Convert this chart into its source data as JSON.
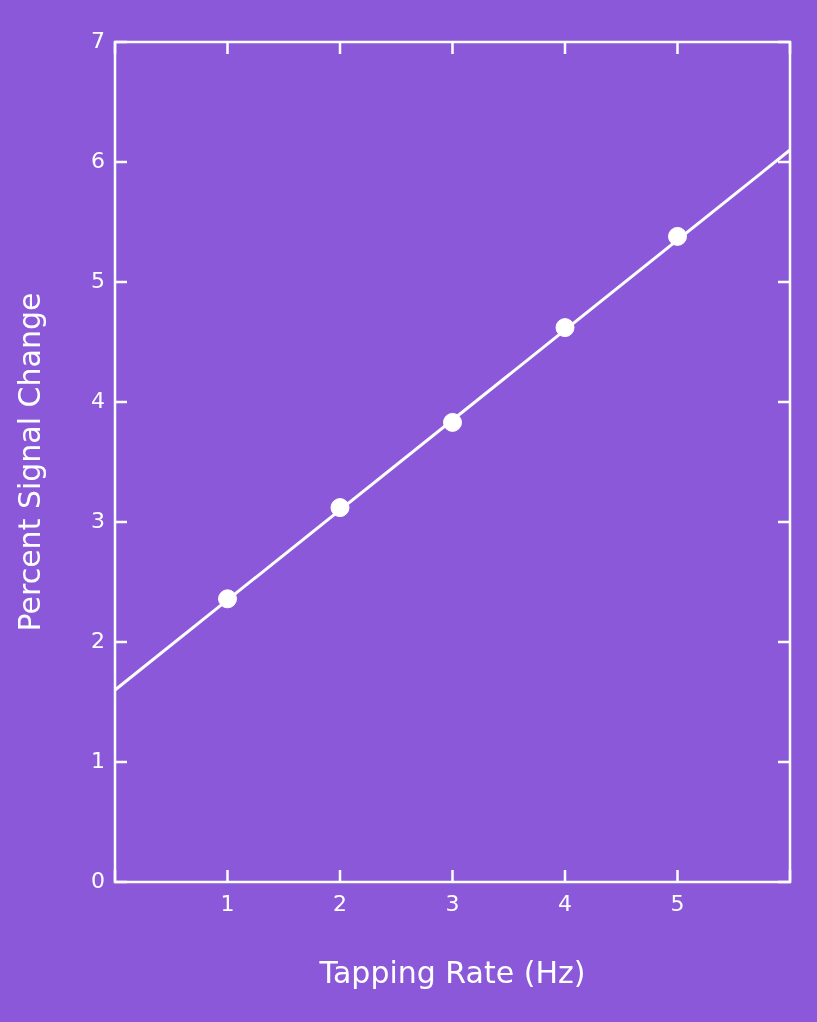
{
  "chart_data": {
    "type": "scatter",
    "xlabel": "Tapping Rate (Hz)",
    "ylabel": "Percent Signal Change",
    "x": [
      1,
      2,
      3,
      4,
      5
    ],
    "series": [
      {
        "color": "#ffffff",
        "values": [
          2.36,
          3.12,
          3.83,
          4.62,
          5.38
        ]
      },
      {
        "type": "line",
        "color": "#ffffff",
        "marker": "none",
        "x": [
          0,
          6
        ],
        "values": [
          1.6,
          6.1
        ]
      }
    ],
    "xlim": [
      0,
      6
    ],
    "xticks": [
      {
        "value": 0,
        "label": null
      },
      1,
      2,
      3,
      4,
      5,
      {
        "value": 6,
        "label": null
      }
    ],
    "ylim": [
      0,
      7
    ],
    "yticks": [
      0,
      1,
      2,
      3,
      4,
      5,
      6,
      7
    ],
    "marker": "circle",
    "grid": false,
    "legend": false
  }
}
